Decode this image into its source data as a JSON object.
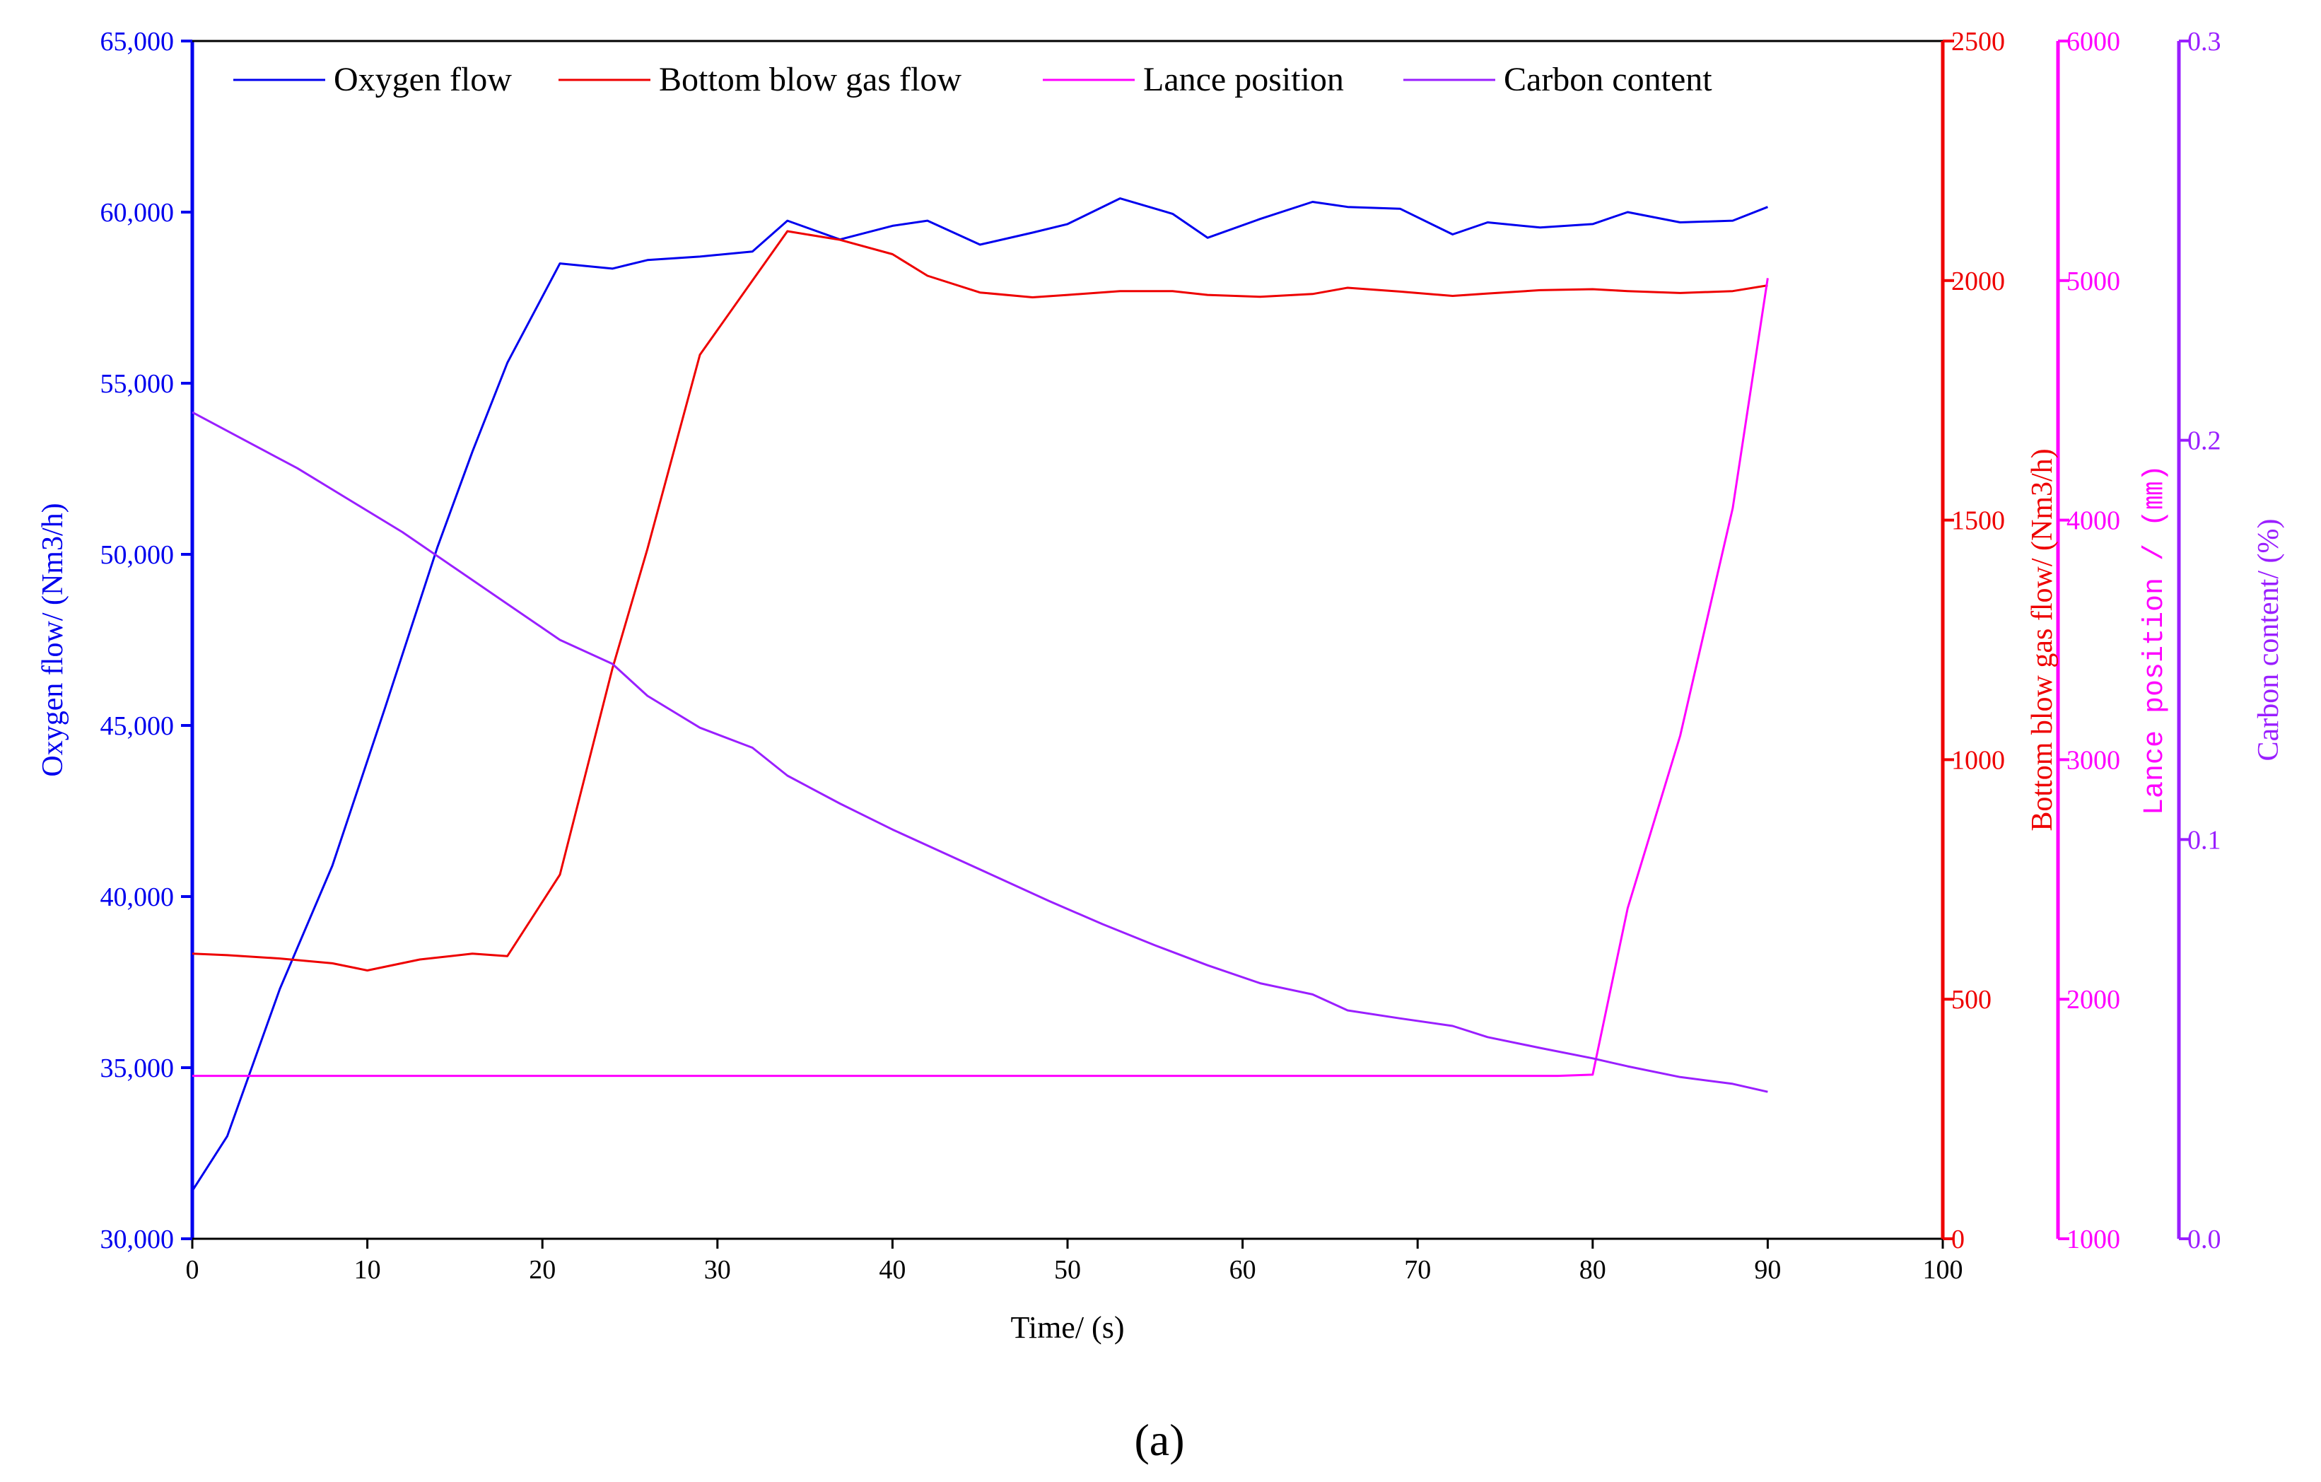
{
  "colors": {
    "oxygen": "#0000ee",
    "bottom": "#ee0000",
    "lance": "#ff00ff",
    "carbon": "#9a1fff",
    "frame": "#000000"
  },
  "chart_data": {
    "type": "line",
    "x_label": "Time/ (s)",
    "x_range": [
      0,
      100
    ],
    "x_ticks": [
      "0",
      "10",
      "20",
      "30",
      "40",
      "50",
      "60",
      "70",
      "80",
      "90",
      "100"
    ],
    "panel_label": "(a)",
    "legend_position": "top",
    "grid": false,
    "axes": [
      {
        "id": "oxygen",
        "side": "left",
        "label": "Oxygen flow/ (Nm3/h)",
        "range": [
          30000,
          65000
        ],
        "tick_values": [
          30000,
          35000,
          40000,
          45000,
          50000,
          55000,
          60000,
          65000
        ],
        "tick_labels": [
          "30,000",
          "35,000",
          "40,000",
          "45,000",
          "50,000",
          "55,000",
          "60,000",
          "65,000"
        ]
      },
      {
        "id": "bottom",
        "side": "right",
        "label": "Bottom blow gas flow/ (Nm3/h)",
        "range": [
          0,
          2500
        ],
        "tick_values": [
          0,
          500,
          1000,
          1500,
          2000,
          2500
        ],
        "tick_labels": [
          "0",
          "500",
          "1000",
          "1500",
          "2000",
          "2500"
        ]
      },
      {
        "id": "lance",
        "side": "right",
        "label": "Lance position / (㎜)",
        "range": [
          1000,
          6000
        ],
        "tick_values": [
          1000,
          2000,
          3000,
          4000,
          5000,
          6000
        ],
        "tick_labels": [
          "1000",
          "2000",
          "3000",
          "4000",
          "5000",
          "6000"
        ]
      },
      {
        "id": "carbon",
        "side": "right",
        "label": "Carbon content/ (%)",
        "range": [
          0,
          0.3
        ],
        "tick_values": [
          0,
          0.1,
          0.2,
          0.3
        ],
        "tick_labels": [
          "0.0",
          "0.1",
          "0.2",
          "0.3"
        ]
      }
    ],
    "series": [
      {
        "name": "Oxygen flow",
        "axis": "oxygen",
        "x": [
          0,
          2,
          5,
          8,
          11,
          14,
          16,
          18,
          21,
          24,
          26,
          29,
          32,
          34,
          37,
          40,
          42,
          45,
          48,
          50,
          53,
          56,
          58,
          61,
          64,
          66,
          69,
          72,
          74,
          77,
          80,
          82,
          85,
          88,
          90
        ],
        "y": [
          31400,
          33000,
          37300,
          40900,
          45500,
          50200,
          53000,
          55600,
          58500,
          58350,
          58600,
          58700,
          58850,
          59750,
          59200,
          59600,
          59750,
          59050,
          59400,
          59650,
          60400,
          59950,
          59250,
          59800,
          60300,
          60150,
          60100,
          59350,
          59700,
          59550,
          59650,
          60000,
          59700,
          59750,
          60150
        ]
      },
      {
        "name": "Bottom blow gas flow",
        "axis": "bottom",
        "x": [
          0,
          2,
          5,
          8,
          10,
          13,
          16,
          18,
          21,
          24,
          26,
          29,
          32,
          34,
          37,
          40,
          42,
          45,
          48,
          50,
          53,
          56,
          58,
          61,
          64,
          66,
          69,
          72,
          74,
          77,
          80,
          82,
          85,
          88,
          90
        ],
        "y": [
          595,
          592,
          585,
          575,
          560,
          583,
          595,
          590,
          760,
          1190,
          1440,
          1845,
          2000,
          2103,
          2085,
          2055,
          2010,
          1975,
          1965,
          1970,
          1978,
          1978,
          1970,
          1966,
          1972,
          1985,
          1977,
          1968,
          1973,
          1980,
          1982,
          1978,
          1974,
          1978,
          1990
        ]
      },
      {
        "name": "Lance position",
        "axis": "lance",
        "x": [
          0,
          10,
          20,
          30,
          40,
          50,
          60,
          70,
          78,
          80,
          82,
          85,
          88,
          90
        ],
        "y": [
          1680,
          1680,
          1680,
          1680,
          1680,
          1680,
          1680,
          1680,
          1680,
          1685,
          2380,
          3100,
          4050,
          5010
        ]
      },
      {
        "name": "Carbon content",
        "axis": "carbon",
        "x": [
          0,
          3,
          6,
          9,
          12,
          15,
          18,
          21,
          24,
          26,
          29,
          32,
          34,
          37,
          40,
          43,
          46,
          49,
          52,
          55,
          58,
          61,
          64,
          66,
          69,
          72,
          74,
          77,
          80,
          82,
          85,
          88,
          90
        ],
        "y": [
          0.207,
          0.2,
          0.193,
          0.185,
          0.177,
          0.168,
          0.159,
          0.15,
          0.144,
          0.136,
          0.128,
          0.123,
          0.116,
          0.109,
          0.1025,
          0.0965,
          0.0905,
          0.0845,
          0.0788,
          0.0735,
          0.0685,
          0.064,
          0.0612,
          0.0572,
          0.0552,
          0.0533,
          0.0505,
          0.0478,
          0.0452,
          0.0432,
          0.0405,
          0.0388,
          0.0368
        ]
      }
    ]
  }
}
